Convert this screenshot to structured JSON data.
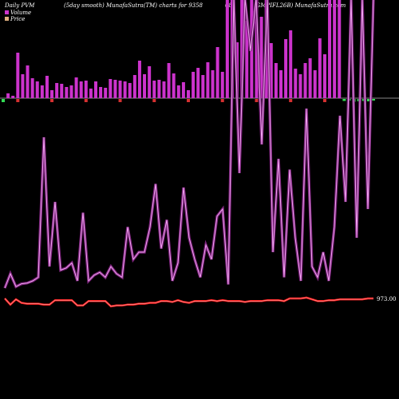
{
  "header": {
    "left": "Daily PVM",
    "center": "(5day smooth) MunafaSutra(TM) charts for 9358",
    "code": "68",
    "right": "(GMPIFL26B) MunafaSutra.com"
  },
  "legend": {
    "volume": "Volume",
    "price": "Price"
  },
  "colors": {
    "background": "#000000",
    "volume_up": "#cc33cc",
    "volume_down_pos": "#d63030",
    "volume_neg": "#33dd55",
    "pvm_line": "#cc44cc",
    "price_line": "#ff2020",
    "baseline": "#888888"
  },
  "chart_data": {
    "type": "line",
    "x_count": 77,
    "price_label": "973.00",
    "volume_bars": [
      {
        "v": 8,
        "c": "green"
      },
      {
        "v": 6,
        "c": "pos"
      },
      {
        "v": 3,
        "c": "pos"
      },
      {
        "v": 57,
        "c": "pos"
      },
      {
        "v": 30,
        "c": "pos"
      },
      {
        "v": 41,
        "c": "pos"
      },
      {
        "v": 25,
        "c": "pos"
      },
      {
        "v": 21,
        "c": "pos"
      },
      {
        "v": 16,
        "c": "pos"
      },
      {
        "v": 28,
        "c": "pos"
      },
      {
        "v": 10,
        "c": "pos"
      },
      {
        "v": 19,
        "c": "pos"
      },
      {
        "v": 18,
        "c": "pos"
      },
      {
        "v": 14,
        "c": "pos"
      },
      {
        "v": 16,
        "c": "pos"
      },
      {
        "v": 26,
        "c": "pos"
      },
      {
        "v": 21,
        "c": "pos"
      },
      {
        "v": 22,
        "c": "pos"
      },
      {
        "v": 12,
        "c": "pos"
      },
      {
        "v": 21,
        "c": "pos"
      },
      {
        "v": 14,
        "c": "pos"
      },
      {
        "v": 13,
        "c": "pos"
      },
      {
        "v": 24,
        "c": "pos"
      },
      {
        "v": 23,
        "c": "pos"
      },
      {
        "v": 22,
        "c": "pos"
      },
      {
        "v": 21,
        "c": "pos"
      },
      {
        "v": 19,
        "c": "pos"
      },
      {
        "v": 29,
        "c": "pos"
      },
      {
        "v": 47,
        "c": "pos"
      },
      {
        "v": 30,
        "c": "pos"
      },
      {
        "v": 40,
        "c": "pos"
      },
      {
        "v": 22,
        "c": "pos"
      },
      {
        "v": 23,
        "c": "pos"
      },
      {
        "v": 21,
        "c": "pos"
      },
      {
        "v": 44,
        "c": "pos"
      },
      {
        "v": 31,
        "c": "pos"
      },
      {
        "v": 16,
        "c": "pos"
      },
      {
        "v": 20,
        "c": "pos"
      },
      {
        "v": 10,
        "c": "pos"
      },
      {
        "v": 33,
        "c": "pos"
      },
      {
        "v": 38,
        "c": "pos"
      },
      {
        "v": 29,
        "c": "pos"
      },
      {
        "v": 45,
        "c": "pos"
      },
      {
        "v": 35,
        "c": "pos"
      },
      {
        "v": 64,
        "c": "pos"
      },
      {
        "v": 33,
        "c": "pos"
      },
      {
        "v": 150,
        "c": "pos"
      },
      {
        "v": 150,
        "c": "pos"
      },
      {
        "v": 70,
        "c": "pos"
      },
      {
        "v": 150,
        "c": "pos"
      },
      {
        "v": 97,
        "c": "pos"
      },
      {
        "v": 150,
        "c": "pos"
      },
      {
        "v": 150,
        "c": "pos"
      },
      {
        "v": 102,
        "c": "pos"
      },
      {
        "v": 150,
        "c": "pos"
      },
      {
        "v": 69,
        "c": "pos"
      },
      {
        "v": 44,
        "c": "pos"
      },
      {
        "v": 35,
        "c": "pos"
      },
      {
        "v": 74,
        "c": "pos"
      },
      {
        "v": 85,
        "c": "pos"
      },
      {
        "v": 37,
        "c": "pos"
      },
      {
        "v": 30,
        "c": "pos"
      },
      {
        "v": 44,
        "c": "pos"
      },
      {
        "v": 50,
        "c": "pos"
      },
      {
        "v": 35,
        "c": "pos"
      },
      {
        "v": 75,
        "c": "pos"
      },
      {
        "v": 55,
        "c": "pos"
      },
      {
        "v": 150,
        "c": "pos"
      },
      {
        "v": 150,
        "c": "pos"
      },
      {
        "v": 150,
        "c": "pos"
      },
      {
        "v": 5,
        "c": "green"
      },
      {
        "v": 3,
        "c": "green"
      },
      {
        "v": 7,
        "c": "green"
      },
      {
        "v": 6,
        "c": "green"
      },
      {
        "v": 5,
        "c": "green"
      },
      {
        "v": 6,
        "c": "green"
      },
      {
        "v": 4,
        "c": "green"
      }
    ],
    "pvm_series": [
      {
        "x": 0,
        "y": 10
      },
      {
        "x": 1,
        "y": 30
      },
      {
        "x": 2,
        "y": 12
      },
      {
        "x": 3,
        "y": 16
      },
      {
        "x": 4,
        "y": 17
      },
      {
        "x": 5,
        "y": 20
      },
      {
        "x": 6,
        "y": 25
      },
      {
        "x": 7,
        "y": 220
      },
      {
        "x": 8,
        "y": 40
      },
      {
        "x": 9,
        "y": 130
      },
      {
        "x": 10,
        "y": 35
      },
      {
        "x": 11,
        "y": 38
      },
      {
        "x": 12,
        "y": 45
      },
      {
        "x": 13,
        "y": 20
      },
      {
        "x": 14,
        "y": 115
      },
      {
        "x": 15,
        "y": 20
      },
      {
        "x": 16,
        "y": 28
      },
      {
        "x": 17,
        "y": 32
      },
      {
        "x": 18,
        "y": 25
      },
      {
        "x": 19,
        "y": 40
      },
      {
        "x": 20,
        "y": 30
      },
      {
        "x": 21,
        "y": 25
      },
      {
        "x": 22,
        "y": 95
      },
      {
        "x": 23,
        "y": 50
      },
      {
        "x": 24,
        "y": 60
      },
      {
        "x": 25,
        "y": 60
      },
      {
        "x": 26,
        "y": 95
      },
      {
        "x": 27,
        "y": 155
      },
      {
        "x": 28,
        "y": 65
      },
      {
        "x": 29,
        "y": 105
      },
      {
        "x": 30,
        "y": 20
      },
      {
        "x": 31,
        "y": 45
      },
      {
        "x": 32,
        "y": 150
      },
      {
        "x": 33,
        "y": 80
      },
      {
        "x": 34,
        "y": 50
      },
      {
        "x": 35,
        "y": 25
      },
      {
        "x": 36,
        "y": 70
      },
      {
        "x": 37,
        "y": 50
      },
      {
        "x": 38,
        "y": 110
      },
      {
        "x": 39,
        "y": 120
      },
      {
        "x": 40,
        "y": 15
      },
      {
        "x": 41,
        "y": 420
      },
      {
        "x": 42,
        "y": 170
      },
      {
        "x": 43,
        "y": 420
      },
      {
        "x": 44,
        "y": 340
      },
      {
        "x": 45,
        "y": 420
      },
      {
        "x": 46,
        "y": 210
      },
      {
        "x": 47,
        "y": 420
      },
      {
        "x": 48,
        "y": 60
      },
      {
        "x": 49,
        "y": 190
      },
      {
        "x": 50,
        "y": 25
      },
      {
        "x": 51,
        "y": 175
      },
      {
        "x": 52,
        "y": 80
      },
      {
        "x": 53,
        "y": 20
      },
      {
        "x": 54,
        "y": 260
      },
      {
        "x": 55,
        "y": 40
      },
      {
        "x": 56,
        "y": 25
      },
      {
        "x": 57,
        "y": 60
      },
      {
        "x": 58,
        "y": 20
      },
      {
        "x": 59,
        "y": 95
      },
      {
        "x": 60,
        "y": 250
      },
      {
        "x": 61,
        "y": 130
      },
      {
        "x": 62,
        "y": 420
      },
      {
        "x": 63,
        "y": 80
      },
      {
        "x": 64,
        "y": 420
      },
      {
        "x": 65,
        "y": 120
      },
      {
        "x": 66,
        "y": 420
      }
    ],
    "price_series": [
      {
        "x": 0,
        "y": 973
      },
      {
        "x": 1,
        "y": 966
      },
      {
        "x": 2,
        "y": 972
      },
      {
        "x": 3,
        "y": 968
      },
      {
        "x": 4,
        "y": 967
      },
      {
        "x": 5,
        "y": 967
      },
      {
        "x": 6,
        "y": 967
      },
      {
        "x": 7,
        "y": 966
      },
      {
        "x": 8,
        "y": 966
      },
      {
        "x": 9,
        "y": 971
      },
      {
        "x": 10,
        "y": 971
      },
      {
        "x": 11,
        "y": 971
      },
      {
        "x": 12,
        "y": 971
      },
      {
        "x": 13,
        "y": 965
      },
      {
        "x": 14,
        "y": 965
      },
      {
        "x": 15,
        "y": 970
      },
      {
        "x": 16,
        "y": 970
      },
      {
        "x": 17,
        "y": 970
      },
      {
        "x": 18,
        "y": 970
      },
      {
        "x": 19,
        "y": 964
      },
      {
        "x": 20,
        "y": 965
      },
      {
        "x": 21,
        "y": 965
      },
      {
        "x": 22,
        "y": 966
      },
      {
        "x": 23,
        "y": 966
      },
      {
        "x": 24,
        "y": 967
      },
      {
        "x": 25,
        "y": 967
      },
      {
        "x": 26,
        "y": 968
      },
      {
        "x": 27,
        "y": 968
      },
      {
        "x": 28,
        "y": 970
      },
      {
        "x": 29,
        "y": 970
      },
      {
        "x": 30,
        "y": 969
      },
      {
        "x": 31,
        "y": 971
      },
      {
        "x": 32,
        "y": 969
      },
      {
        "x": 33,
        "y": 968
      },
      {
        "x": 34,
        "y": 970
      },
      {
        "x": 35,
        "y": 970
      },
      {
        "x": 36,
        "y": 970
      },
      {
        "x": 37,
        "y": 971
      },
      {
        "x": 38,
        "y": 970
      },
      {
        "x": 39,
        "y": 971
      },
      {
        "x": 40,
        "y": 970
      },
      {
        "x": 41,
        "y": 970
      },
      {
        "x": 42,
        "y": 970
      },
      {
        "x": 43,
        "y": 969
      },
      {
        "x": 44,
        "y": 970
      },
      {
        "x": 45,
        "y": 970
      },
      {
        "x": 46,
        "y": 970
      },
      {
        "x": 47,
        "y": 971
      },
      {
        "x": 48,
        "y": 971
      },
      {
        "x": 49,
        "y": 971
      },
      {
        "x": 50,
        "y": 970
      },
      {
        "x": 51,
        "y": 973
      },
      {
        "x": 52,
        "y": 973
      },
      {
        "x": 53,
        "y": 973
      },
      {
        "x": 54,
        "y": 974
      },
      {
        "x": 55,
        "y": 972
      },
      {
        "x": 56,
        "y": 970
      },
      {
        "x": 57,
        "y": 970
      },
      {
        "x": 58,
        "y": 971
      },
      {
        "x": 59,
        "y": 971
      },
      {
        "x": 60,
        "y": 972
      },
      {
        "x": 61,
        "y": 972
      },
      {
        "x": 62,
        "y": 972
      },
      {
        "x": 63,
        "y": 972
      },
      {
        "x": 64,
        "y": 972
      },
      {
        "x": 65,
        "y": 973
      },
      {
        "x": 66,
        "y": 973
      }
    ]
  }
}
